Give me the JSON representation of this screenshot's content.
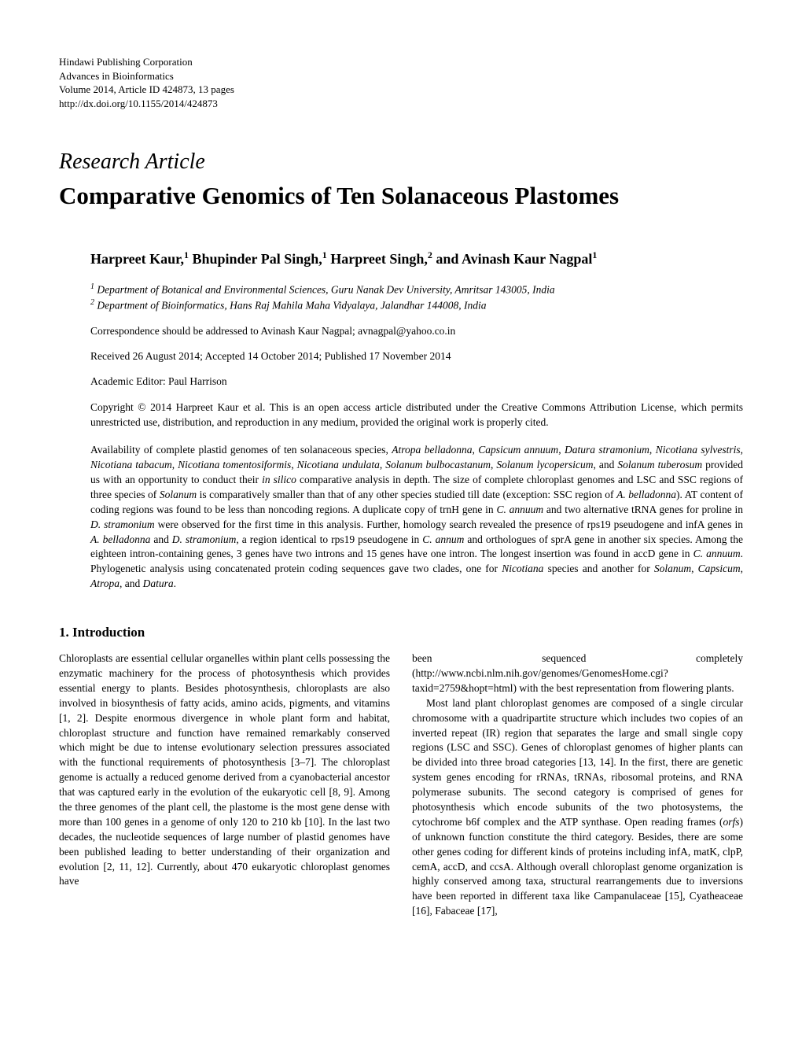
{
  "publisher": {
    "line1": "Hindawi Publishing Corporation",
    "line2": "Advances in Bioinformatics",
    "line3": "Volume 2014, Article ID 424873, 13 pages",
    "line4": "http://dx.doi.org/10.1155/2014/424873"
  },
  "article_type": "Research Article",
  "title": "Comparative Genomics of Ten Solanaceous Plastomes",
  "authors_html": "Harpreet Kaur,<sup>1</sup> Bhupinder Pal Singh,<sup>1</sup> Harpreet Singh,<sup>2</sup> and Avinash Kaur Nagpal<sup>1</sup>",
  "affiliations": {
    "aff1_html": "<sup>1</sup> Department of Botanical and Environmental Sciences, Guru Nanak Dev University, Amritsar 143005, India",
    "aff2_html": "<sup>2</sup> Department of Bioinformatics, Hans Raj Mahila Maha Vidyalaya, Jalandhar 144008, India"
  },
  "correspondence": "Correspondence should be addressed to Avinash Kaur Nagpal; avnagpal@yahoo.co.in",
  "dates": "Received 26 August 2014; Accepted 14 October 2014; Published 17 November 2014",
  "editor": "Academic Editor: Paul Harrison",
  "copyright": "Copyright © 2014 Harpreet Kaur et al. This is an open access article distributed under the Creative Commons Attribution License, which permits unrestricted use, distribution, and reproduction in any medium, provided the original work is properly cited.",
  "abstract_html": "Availability of complete plastid genomes of ten solanaceous species, <span class=\"italic\">Atropa belladonna</span>, <span class=\"italic\">Capsicum annuum</span>, <span class=\"italic\">Datura stramonium</span>, <span class=\"italic\">Nicotiana sylvestris</span>, <span class=\"italic\">Nicotiana tabacum</span>, <span class=\"italic\">Nicotiana tomentosiformis</span>, <span class=\"italic\">Nicotiana undulata</span>, <span class=\"italic\">Solanum bulbocastanum</span>, <span class=\"italic\">Solanum lycopersicum</span>, and <span class=\"italic\">Solanum tuberosum</span> provided us with an opportunity to conduct their <span class=\"italic\">in silico</span> comparative analysis in depth. The size of complete chloroplast genomes and LSC and SSC regions of three species of <span class=\"italic\">Solanum</span> is comparatively smaller than that of any other species studied till date (exception: SSC region of <span class=\"italic\">A. belladonna</span>). AT content of coding regions was found to be less than noncoding regions. A duplicate copy of trnH gene in <span class=\"italic\">C. annuum</span> and two alternative tRNA genes for proline in <span class=\"italic\">D. stramonium</span> were observed for the first time in this analysis. Further, homology search revealed the presence of rps19 pseudogene and infA genes in <span class=\"italic\">A. belladonna</span> and <span class=\"italic\">D. stramonium</span>, a region identical to rps19 pseudogene in <span class=\"italic\">C. annum</span> and orthologues of sprA gene in another six species. Among the eighteen intron-containing genes, 3 genes have two introns and 15 genes have one intron. The longest insertion was found in accD gene in <span class=\"italic\">C. annuum</span>. Phylogenetic analysis using concatenated protein coding sequences gave two clades, one for <span class=\"italic\">Nicotiana</span> species and another for <span class=\"italic\">Solanum</span>, <span class=\"italic\">Capsicum</span>, <span class=\"italic\">Atropa</span>, and <span class=\"italic\">Datura</span>.",
  "section_heading": "1. Introduction",
  "column1_html": "Chloroplasts are essential cellular organelles within plant cells possessing the enzymatic machinery for the process of photosynthesis which provides essential energy to plants. Besides photosynthesis, chloroplasts are also involved in biosynthesis of fatty acids, amino acids, pigments, and vitamins [1, 2]. Despite enormous divergence in whole plant form and habitat, chloroplast structure and function have remained remarkably conserved which might be due to intense evolutionary selection pressures associated with the functional requirements of photosynthesis [3–7]. The chloroplast genome is actually a reduced genome derived from a cyanobacterial ancestor that was captured early in the evolution of the eukaryotic cell [8, 9]. Among the three genomes of the plant cell, the plastome is the most gene dense with more than 100 genes in a genome of only 120 to 210 kb [10]. In the last two decades, the nucleotide sequences of large number of plastid genomes have been published leading to better understanding of their organization and evolution [2, 11, 12]. Currently, about 470 eukaryotic chloroplast genomes have",
  "column2_p1_html": "been sequenced completely (http://www.ncbi.nlm.nih.gov/genomes/GenomesHome.cgi?taxid=2759&amp;hopt=html) with the best representation from flowering plants.",
  "column2_p2_html": "Most land plant chloroplast genomes are composed of a single circular chromosome with a quadripartite structure which includes two copies of an inverted repeat (IR) region that separates the large and small single copy regions (LSC and SSC). Genes of chloroplast genomes of higher plants can be divided into three broad categories [13, 14]. In the first, there are genetic system genes encoding for rRNAs, tRNAs, ribosomal proteins, and RNA polymerase subunits. The second category is comprised of genes for photosynthesis which encode subunits of the two photosystems, the cytochrome b6f complex and the ATP synthase. Open reading frames (<span class=\"italic\">orfs</span>) of unknown function constitute the third category. Besides, there are some other genes coding for different kinds of proteins including infA, matK, clpP, cemA, accD, and ccsA. Although overall chloroplast genome organization is highly conserved among taxa, structural rearrangements due to inversions have been reported in different taxa like Campanulaceae [15], Cyatheaceae [16], Fabaceae [17],"
}
